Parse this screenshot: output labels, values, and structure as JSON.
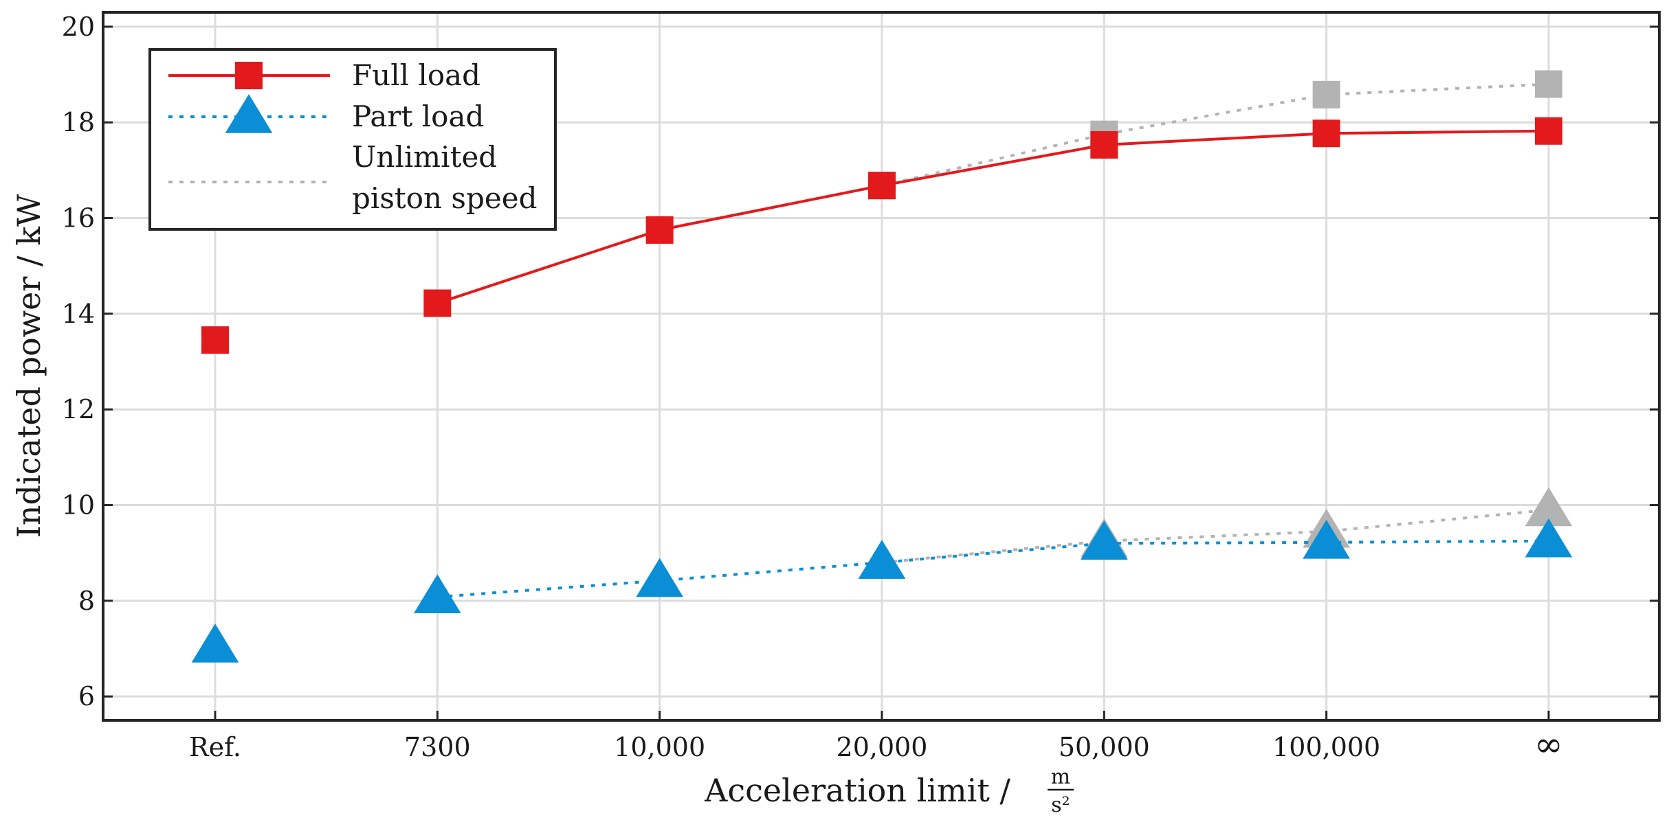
{
  "chart_data": {
    "type": "line",
    "title": "",
    "xlabel": "Acceleration limit /",
    "xlabel_unit_numerator": "m",
    "xlabel_unit_denominator": "s²",
    "ylabel": "Indicated power / kW",
    "categories": [
      "Ref.",
      "7300",
      "10,000",
      "20,000",
      "50,000",
      "100,000",
      "∞"
    ],
    "ylim": [
      5.5,
      20.3
    ],
    "yticks": [
      6,
      8,
      10,
      12,
      14,
      16,
      18,
      20
    ],
    "grid": true,
    "legend_position": "top-left",
    "series": [
      {
        "name": "Unlimited piston speed",
        "legend_label_lines": [
          "Unlimited",
          "piston speed"
        ],
        "color": "#b3b3b3",
        "line_style": "dotted",
        "groups": [
          {
            "marker": "square",
            "connect_from_index": 3,
            "values": [
              null,
              null,
              null,
              16.68,
              17.75,
              18.58,
              18.8
            ]
          },
          {
            "marker": "triangle",
            "connect_from_index": 3,
            "values": [
              null,
              null,
              null,
              8.8,
              9.25,
              9.45,
              9.9
            ]
          }
        ]
      },
      {
        "name": "Full load",
        "color": "#e31a1c",
        "line_style": "solid",
        "marker": "square",
        "connect_from_index": 1,
        "values": [
          13.45,
          14.22,
          15.75,
          16.68,
          17.53,
          17.77,
          17.82
        ]
      },
      {
        "name": "Part load",
        "color": "#0a8fd6",
        "line_style": "dotted",
        "marker": "triangle",
        "connect_from_index": 1,
        "values": [
          7.05,
          8.08,
          8.42,
          8.8,
          9.2,
          9.22,
          9.25
        ]
      }
    ]
  }
}
